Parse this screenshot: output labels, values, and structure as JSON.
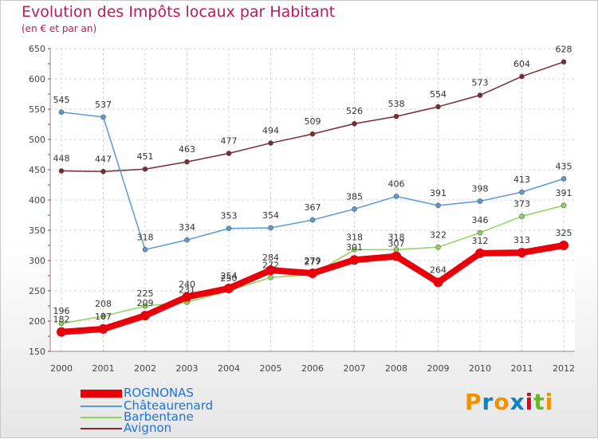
{
  "title": "Evolution des Impôts locaux par Habitant",
  "subtitle": "(en € et par an)",
  "logo": {
    "letters": [
      "P",
      "r",
      "o",
      "x",
      "i",
      "t",
      "i"
    ],
    "colors": [
      "#f39200",
      "#0a84c9",
      "#f39200",
      "#0a84c9",
      "#e2001a",
      "#6bb52b",
      "#f39200"
    ]
  },
  "chart_data": {
    "type": "line",
    "title": "Evolution des Impôts locaux par Habitant",
    "subtitle": "(en € et par an)",
    "xlabel": "",
    "ylabel": "",
    "categories": [
      "2000",
      "2001",
      "2002",
      "2003",
      "2004",
      "2005",
      "2006",
      "2007",
      "2008",
      "2009",
      "2010",
      "2011",
      "2012"
    ],
    "ylim": [
      150,
      650
    ],
    "yticks": [
      150,
      200,
      250,
      300,
      350,
      400,
      450,
      500,
      550,
      600,
      650
    ],
    "grid": true,
    "legend": "bottom-left",
    "series": [
      {
        "name": "ROGNONAS",
        "color": "#e8000b",
        "values": [
          182,
          187,
          209,
          240,
          254,
          284,
          279,
          301,
          307,
          264,
          312,
          313,
          325
        ],
        "labels": [
          "182",
          "187",
          "209",
          "240",
          "254",
          "284",
          "279",
          "301",
          "307",
          "264",
          "312",
          "313",
          "325"
        ]
      },
      {
        "name": "Châteaurenard",
        "color": "#5b9bd5",
        "values": [
          545,
          537,
          318,
          334,
          353,
          354,
          367,
          385,
          406,
          391,
          398,
          413,
          435
        ],
        "labels": [
          "545",
          "537",
          "318",
          "334",
          "353",
          "354",
          "367",
          "385",
          "406",
          "391",
          "398",
          "413",
          "435"
        ]
      },
      {
        "name": "Barbentane",
        "color": "#8fd45a",
        "values": [
          196,
          208,
          225,
          231,
          250,
          272,
          277,
          318,
          318,
          322,
          346,
          373,
          391
        ],
        "labels": [
          "196",
          "208",
          "225",
          "231",
          "250",
          "272",
          "277",
          "318",
          "318",
          "322",
          "346",
          "373",
          "391"
        ]
      },
      {
        "name": "Avignon",
        "color": "#7a2a30",
        "values": [
          448,
          447,
          451,
          463,
          477,
          494,
          509,
          526,
          538,
          554,
          573,
          604,
          628
        ],
        "labels": [
          "448",
          "447",
          "451",
          "463",
          "477",
          "494",
          "509",
          "526",
          "538",
          "554",
          "573",
          "604",
          "628"
        ]
      }
    ]
  }
}
